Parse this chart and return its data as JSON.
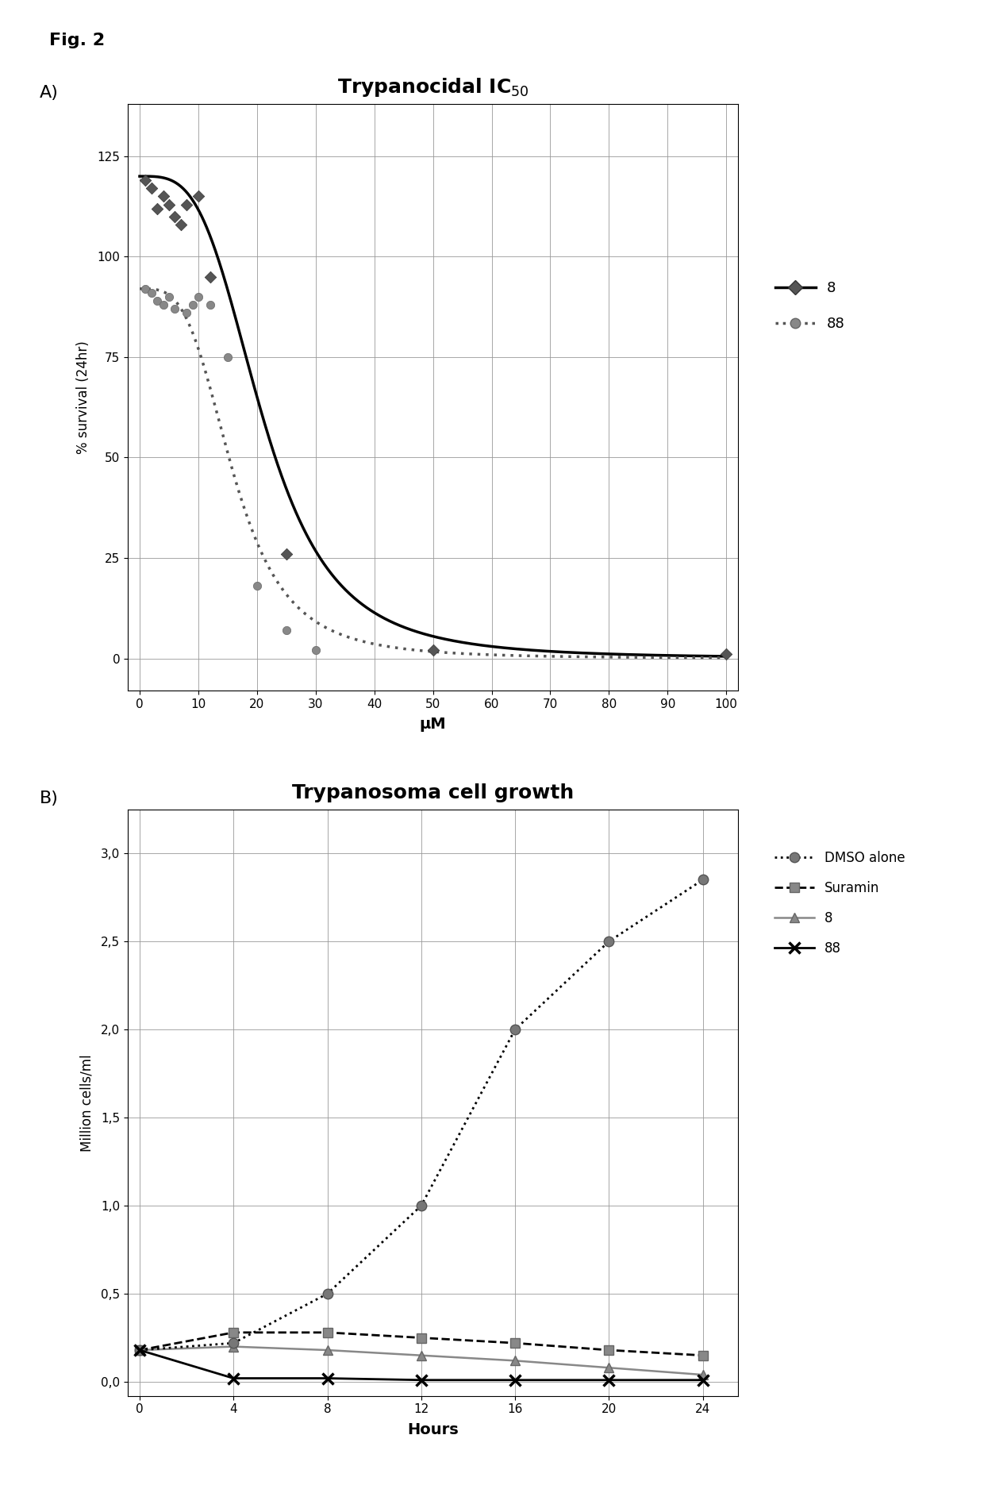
{
  "fig_label": "Fig. 2",
  "panel_A": {
    "title": "Trypanocidal IC$_{50}$",
    "xlabel": "μM",
    "ylabel": "% survival (24hr)",
    "xlim": [
      -2,
      102
    ],
    "ylim": [
      -8,
      138
    ],
    "xticks": [
      0,
      10,
      20,
      30,
      40,
      50,
      60,
      70,
      80,
      90,
      100
    ],
    "yticks": [
      0,
      25,
      50,
      75,
      100,
      125
    ],
    "series8_scatter_x": [
      1,
      2,
      3,
      4,
      5,
      6,
      7,
      8,
      10,
      12,
      25,
      50,
      100
    ],
    "series8_scatter_y": [
      119,
      117,
      112,
      115,
      113,
      110,
      108,
      113,
      115,
      95,
      26,
      2,
      1
    ],
    "series88_scatter_x": [
      1,
      2,
      3,
      4,
      5,
      6,
      8,
      9,
      10,
      12,
      15,
      20,
      25,
      30
    ],
    "series88_scatter_y": [
      92,
      91,
      89,
      88,
      90,
      87,
      86,
      88,
      90,
      88,
      75,
      18,
      7,
      2
    ],
    "ic50_8": 21.0,
    "hill_8": 3.5,
    "top_8": 120.0,
    "ic50_88": 16.0,
    "hill_88": 3.5,
    "top_88": 92.0
  },
  "panel_B": {
    "title": "Trypanosoma cell growth",
    "xlabel": "Hours",
    "ylabel": "Million cells/ml",
    "xlim": [
      -0.5,
      25.5
    ],
    "ylim": [
      -0.08,
      3.25
    ],
    "xticks": [
      0,
      4,
      8,
      12,
      16,
      20,
      24
    ],
    "yticks": [
      0.0,
      0.5,
      1.0,
      1.5,
      2.0,
      2.5,
      3.0
    ],
    "dmso_x": [
      0,
      4,
      8,
      12,
      16,
      20,
      24
    ],
    "dmso_y": [
      0.18,
      0.22,
      0.5,
      1.0,
      2.0,
      2.5,
      2.85
    ],
    "suramin_x": [
      0,
      4,
      8,
      12,
      16,
      20,
      24
    ],
    "suramin_y": [
      0.18,
      0.28,
      0.28,
      0.25,
      0.22,
      0.18,
      0.15
    ],
    "comp8_x": [
      0,
      4,
      8,
      12,
      16,
      20,
      24
    ],
    "comp8_y": [
      0.18,
      0.2,
      0.18,
      0.15,
      0.12,
      0.08,
      0.04
    ],
    "comp88_x": [
      0,
      4,
      8,
      12,
      16,
      20,
      24
    ],
    "comp88_y": [
      0.18,
      0.02,
      0.02,
      0.01,
      0.01,
      0.01,
      0.01
    ]
  }
}
